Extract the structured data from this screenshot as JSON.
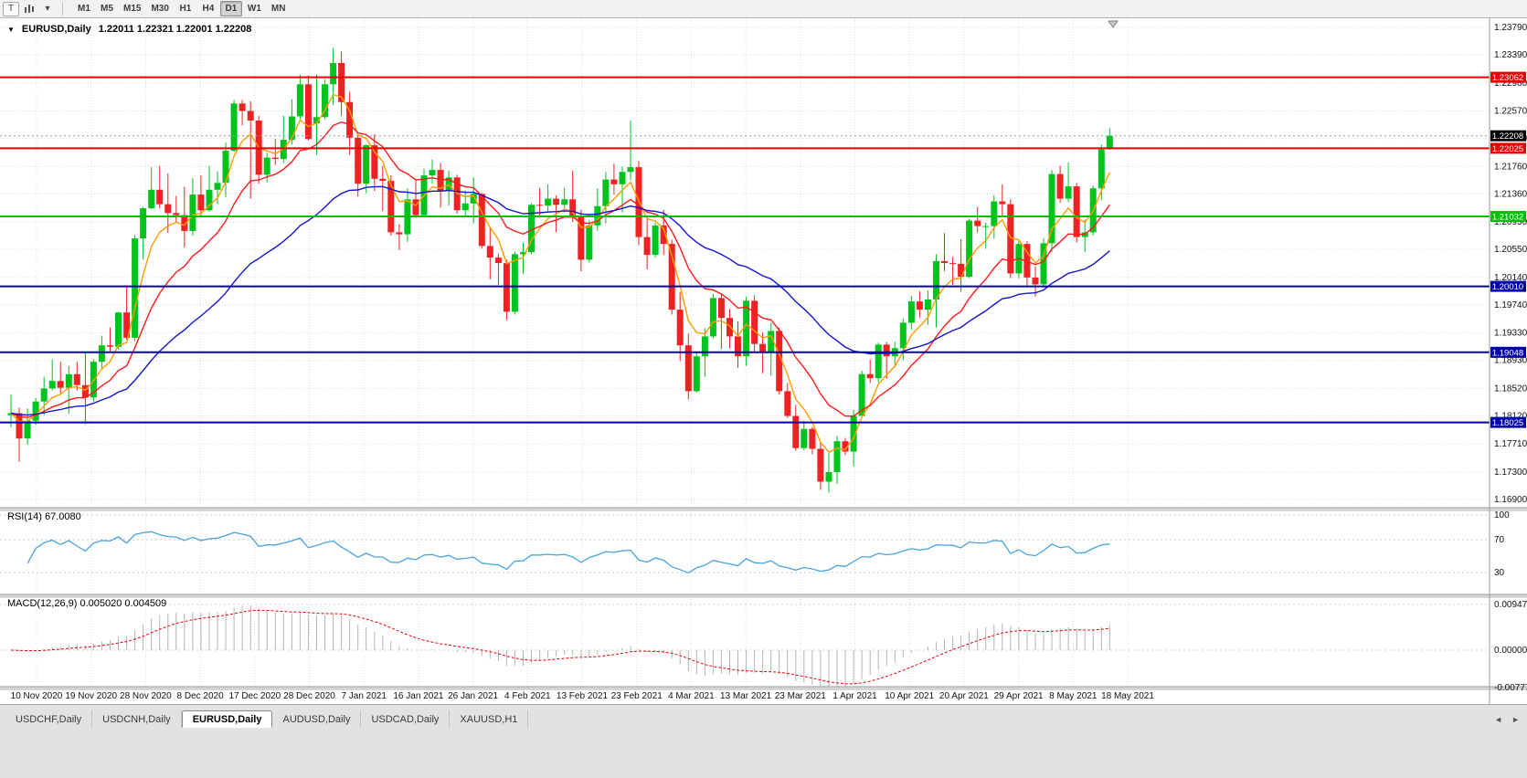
{
  "toolbar": {
    "t_button": "T",
    "caret_icon": "▾",
    "timeframes": [
      {
        "label": "M1",
        "active": false
      },
      {
        "label": "M5",
        "active": false
      },
      {
        "label": "M15",
        "active": false
      },
      {
        "label": "M30",
        "active": false
      },
      {
        "label": "H1",
        "active": false
      },
      {
        "label": "H4",
        "active": false
      },
      {
        "label": "D1",
        "active": true
      },
      {
        "label": "W1",
        "active": false
      },
      {
        "label": "MN",
        "active": false
      }
    ]
  },
  "chart": {
    "dropdown_icon": "▼",
    "title_symbol": "EURUSD,Daily",
    "title_ohlc": "1.22011 1.22321 1.22001 1.22208"
  },
  "indicators": {
    "rsi_label": "RSI(14) 67.0080",
    "macd_label": "MACD(12,26,9) 0.005020 0.004509"
  },
  "tabbar": {
    "left_arrow": "◄",
    "right_arrow": "►",
    "tabs": [
      {
        "label": "USDCHF,Daily",
        "active": false
      },
      {
        "label": "USDCNH,Daily",
        "active": false
      },
      {
        "label": "EURUSD,Daily",
        "active": true
      },
      {
        "label": "AUDUSD,Daily",
        "active": false
      },
      {
        "label": "USDCAD,Daily",
        "active": false
      },
      {
        "label": "XAUUSD,H1",
        "active": false
      }
    ]
  },
  "chart_data": {
    "type": "candlestick",
    "symbol": "EURUSD",
    "timeframe": "Daily",
    "current_bar": {
      "open": 1.22011,
      "high": 1.22321,
      "low": 1.22001,
      "close": 1.22208
    },
    "current_price": 1.22208,
    "price_scale": {
      "max": 1.2379,
      "min": 1.169
    },
    "price_axis_labels": [
      1.2379,
      1.2339,
      1.2298,
      1.2257,
      1.2217,
      1.2176,
      1.2136,
      1.2095,
      1.2055,
      1.2014,
      1.1974,
      1.1933,
      1.1893,
      1.1852,
      1.1812,
      1.1771,
      1.173,
      1.169
    ],
    "time_axis_labels": [
      "10 Nov 2020",
      "19 Nov 2020",
      "28 Nov 2020",
      "8 Dec 2020",
      "17 Dec 2020",
      "28 Dec 2020",
      "7 Jan 2021",
      "16 Jan 2021",
      "26 Jan 2021",
      "4 Feb 2021",
      "13 Feb 2021",
      "23 Feb 2021",
      "4 Mar 2021",
      "13 Mar 2021",
      "23 Mar 2021",
      "1 Apr 2021",
      "10 Apr 2021",
      "20 Apr 2021",
      "29 Apr 2021",
      "8 May 2021",
      "18 May 2021"
    ],
    "horizontal_lines": [
      {
        "price": 1.23062,
        "label": "1.23062",
        "color": "#e60000",
        "width": 2
      },
      {
        "price": 1.22025,
        "label": "1.22025",
        "color": "#e60000",
        "width": 2
      },
      {
        "price": 1.21032,
        "label": "1.21032",
        "color": "#00c000",
        "width": 2
      },
      {
        "price": 1.2001,
        "label": "1.20010",
        "color": "#0000a8",
        "width": 2
      },
      {
        "price": 1.19048,
        "label": "1.19048",
        "color": "#0000a8",
        "width": 2
      },
      {
        "price": 1.18025,
        "label": "1.18025",
        "color": "#0000a8",
        "width": 2
      }
    ],
    "moving_averages": [
      {
        "period": 5,
        "method": "ema",
        "color": "#ff9d00"
      },
      {
        "period": 13,
        "method": "ema",
        "color": "#ff1a1a"
      },
      {
        "period": 34,
        "method": "ema",
        "color": "#1414cc"
      }
    ],
    "rsi": {
      "period": 14,
      "current": 67.008,
      "levels": [
        {
          "v": 100,
          "t": "100"
        },
        {
          "v": 70,
          "t": "70"
        },
        {
          "v": 30,
          "t": "30"
        }
      ]
    },
    "macd": {
      "fast": 12,
      "slow": 26,
      "signal": 9,
      "macd_current": 0.00502,
      "signal_current": 0.004509,
      "scale_labels": [
        {
          "v": 0.009478,
          "t": "0.009478"
        },
        {
          "v": 0,
          "t": "0.00000"
        },
        {
          "v": -0.007776,
          "t": "-0.007776"
        }
      ]
    },
    "colors": {
      "bull": "#00c31e",
      "bear": "#ee2222",
      "grid": "#dcdcdc",
      "axis_text": "#111111",
      "macd_hist": "#b4b4b4",
      "macd_signal": "#e60000",
      "rsi_line": "#46a3e0",
      "current_tag": "#000000",
      "bid_line": "#9a9a9a"
    },
    "candles": [
      [
        "2020.11.10",
        1.1813,
        1.1843,
        1.1795,
        1.1816
      ],
      [
        "2020.11.11",
        1.1816,
        1.1824,
        1.1745,
        1.1779
      ],
      [
        "2020.11.12",
        1.1779,
        1.1823,
        1.177,
        1.1805
      ],
      [
        "2020.11.13",
        1.1805,
        1.1838,
        1.1799,
        1.1833
      ],
      [
        "2020.11.16",
        1.1833,
        1.1869,
        1.1813,
        1.1852
      ],
      [
        "2020.11.17",
        1.1852,
        1.1894,
        1.1849,
        1.1863
      ],
      [
        "2020.11.18",
        1.1863,
        1.1891,
        1.1845,
        1.1853
      ],
      [
        "2020.11.19",
        1.1853,
        1.1885,
        1.1815,
        1.1873
      ],
      [
        "2020.11.20",
        1.1873,
        1.1891,
        1.1849,
        1.1857
      ],
      [
        "2020.11.23",
        1.1857,
        1.1906,
        1.18,
        1.1839
      ],
      [
        "2020.11.24",
        1.1839,
        1.1895,
        1.1833,
        1.1891
      ],
      [
        "2020.11.25",
        1.1891,
        1.1929,
        1.1881,
        1.1915
      ],
      [
        "2020.11.26",
        1.1915,
        1.1941,
        1.1905,
        1.1913
      ],
      [
        "2020.11.27",
        1.1913,
        1.1964,
        1.1909,
        1.1963
      ],
      [
        "2020.11.30",
        1.1963,
        1.2003,
        1.1923,
        1.1926
      ],
      [
        "2020.12.01",
        1.1926,
        1.2076,
        1.1921,
        1.2071
      ],
      [
        "2020.12.02",
        1.2071,
        1.2117,
        1.204,
        1.2115
      ],
      [
        "2020.12.03",
        1.2115,
        1.2175,
        1.2114,
        1.2142
      ],
      [
        "2020.12.04",
        1.2142,
        1.2177,
        1.2115,
        1.2121
      ],
      [
        "2020.12.07",
        1.2121,
        1.2166,
        1.2079,
        1.2108
      ],
      [
        "2020.12.08",
        1.2108,
        1.2133,
        1.2095,
        1.2105
      ],
      [
        "2020.12.09",
        1.2105,
        1.2146,
        1.2058,
        1.2082
      ],
      [
        "2020.12.10",
        1.2082,
        1.2159,
        1.2075,
        1.2135
      ],
      [
        "2020.12.11",
        1.2135,
        1.2163,
        1.2103,
        1.2112
      ],
      [
        "2020.12.14",
        1.2112,
        1.2177,
        1.211,
        1.2142
      ],
      [
        "2020.12.15",
        1.2142,
        1.2169,
        1.2121,
        1.2152
      ],
      [
        "2020.12.16",
        1.2152,
        1.2211,
        1.2131,
        1.2199
      ],
      [
        "2020.12.17",
        1.2199,
        1.2273,
        1.2197,
        1.2268
      ],
      [
        "2020.12.18",
        1.2268,
        1.2273,
        1.2236,
        1.2257
      ],
      [
        "2020.12.21",
        1.2257,
        1.2271,
        1.2129,
        1.2243
      ],
      [
        "2020.12.22",
        1.2243,
        1.225,
        1.2151,
        1.2164
      ],
      [
        "2020.12.23",
        1.2164,
        1.2196,
        1.2153,
        1.2189
      ],
      [
        "2020.12.24",
        1.2189,
        1.2216,
        1.2178,
        1.2187
      ],
      [
        "2020.12.28",
        1.2187,
        1.225,
        1.2181,
        1.2215
      ],
      [
        "2020.12.29",
        1.2215,
        1.2274,
        1.2208,
        1.2249
      ],
      [
        "2020.12.30",
        1.2249,
        1.231,
        1.2245,
        1.2296
      ],
      [
        "2020.12.31",
        1.2296,
        1.2309,
        1.2214,
        1.2216
      ],
      [
        "2021.01.04",
        1.2239,
        1.231,
        1.2193,
        1.2248
      ],
      [
        "2021.01.05",
        1.2248,
        1.2303,
        1.2245,
        1.2296
      ],
      [
        "2021.01.06",
        1.2296,
        1.2349,
        1.2266,
        1.2327
      ],
      [
        "2021.01.07",
        1.2327,
        1.2344,
        1.225,
        1.227
      ],
      [
        "2021.01.08",
        1.227,
        1.2285,
        1.2193,
        1.2218
      ],
      [
        "2021.01.11",
        1.2218,
        1.2223,
        1.2132,
        1.2151
      ],
      [
        "2021.01.12",
        1.2151,
        1.2208,
        1.2137,
        1.2207
      ],
      [
        "2021.01.13",
        1.2207,
        1.2223,
        1.214,
        1.2158
      ],
      [
        "2021.01.14",
        1.2158,
        1.2177,
        1.2111,
        1.2155
      ],
      [
        "2021.01.15",
        1.2155,
        1.2163,
        1.2075,
        1.208
      ],
      [
        "2021.01.18",
        1.208,
        1.2092,
        1.2054,
        1.2077
      ],
      [
        "2021.01.19",
        1.2077,
        1.2144,
        1.2066,
        1.2128
      ],
      [
        "2021.01.20",
        1.2128,
        1.2158,
        1.2101,
        1.2105
      ],
      [
        "2021.01.21",
        1.2105,
        1.2173,
        1.2103,
        1.2163
      ],
      [
        "2021.01.22",
        1.2163,
        1.2186,
        1.2151,
        1.2171
      ],
      [
        "2021.01.25",
        1.2171,
        1.2181,
        1.2116,
        1.214
      ],
      [
        "2021.01.26",
        1.214,
        1.217,
        1.2119,
        1.216
      ],
      [
        "2021.01.27",
        1.216,
        1.2164,
        1.2107,
        1.2112
      ],
      [
        "2021.01.28",
        1.2112,
        1.2141,
        1.2104,
        1.2122
      ],
      [
        "2021.01.29",
        1.2122,
        1.216,
        1.2093,
        1.2136
      ],
      [
        "2021.02.01",
        1.2136,
        1.2137,
        1.2056,
        1.206
      ],
      [
        "2021.02.02",
        1.206,
        1.2086,
        1.2011,
        1.2043
      ],
      [
        "2021.02.03",
        1.2043,
        1.2049,
        1.2003,
        1.2035
      ],
      [
        "2021.02.04",
        1.2035,
        1.204,
        1.1952,
        1.1964
      ],
      [
        "2021.02.05",
        1.1964,
        1.2052,
        1.196,
        1.2048
      ],
      [
        "2021.02.08",
        1.2048,
        1.2065,
        1.2019,
        1.2051
      ],
      [
        "2021.02.09",
        1.2051,
        1.2122,
        1.2048,
        1.212
      ],
      [
        "2021.02.10",
        1.212,
        1.2145,
        1.2103,
        1.2119
      ],
      [
        "2021.02.11",
        1.2119,
        1.215,
        1.211,
        1.2129
      ],
      [
        "2021.02.12",
        1.2129,
        1.2134,
        1.208,
        1.212
      ],
      [
        "2021.02.15",
        1.212,
        1.2145,
        1.2109,
        1.2128
      ],
      [
        "2021.02.16",
        1.2128,
        1.217,
        1.2095,
        1.2104
      ],
      [
        "2021.02.17",
        1.2104,
        1.2113,
        1.2023,
        1.204
      ],
      [
        "2021.02.18",
        1.204,
        1.2097,
        1.2036,
        1.209
      ],
      [
        "2021.02.19",
        1.209,
        1.2144,
        1.2082,
        1.2118
      ],
      [
        "2021.02.22",
        1.2118,
        1.2168,
        1.2093,
        1.2157
      ],
      [
        "2021.02.23",
        1.2157,
        1.218,
        1.2135,
        1.215
      ],
      [
        "2021.02.24",
        1.215,
        1.2176,
        1.2109,
        1.2168
      ],
      [
        "2021.02.25",
        1.2168,
        1.2243,
        1.2156,
        1.2175
      ],
      [
        "2021.02.26",
        1.2175,
        1.2184,
        1.2061,
        1.2073
      ],
      [
        "2021.03.01",
        1.2073,
        1.2102,
        1.2026,
        1.2047
      ],
      [
        "2021.03.02",
        1.2047,
        1.2094,
        1.2043,
        1.209
      ],
      [
        "2021.03.03",
        1.209,
        1.2113,
        1.2047,
        1.2063
      ],
      [
        "2021.03.04",
        1.2063,
        1.2069,
        1.196,
        1.1967
      ],
      [
        "2021.03.05",
        1.1967,
        1.1993,
        1.1892,
        1.1915
      ],
      [
        "2021.03.08",
        1.1915,
        1.1932,
        1.1836,
        1.1848
      ],
      [
        "2021.03.09",
        1.1848,
        1.1906,
        1.1846,
        1.1899
      ],
      [
        "2021.03.10",
        1.1899,
        1.194,
        1.1869,
        1.1928
      ],
      [
        "2021.03.11",
        1.1928,
        1.199,
        1.1925,
        1.1984
      ],
      [
        "2021.03.12",
        1.1984,
        1.199,
        1.191,
        1.1955
      ],
      [
        "2021.03.15",
        1.1955,
        1.1968,
        1.1911,
        1.1928
      ],
      [
        "2021.03.16",
        1.1928,
        1.195,
        1.1882,
        1.1899
      ],
      [
        "2021.03.17",
        1.1899,
        1.1986,
        1.1885,
        1.198
      ],
      [
        "2021.03.18",
        1.198,
        1.1988,
        1.1906,
        1.1917
      ],
      [
        "2021.03.19",
        1.1917,
        1.1934,
        1.1874,
        1.1905
      ],
      [
        "2021.03.22",
        1.1905,
        1.1948,
        1.1871,
        1.1936
      ],
      [
        "2021.03.23",
        1.1936,
        1.1941,
        1.1843,
        1.1848
      ],
      [
        "2021.03.24",
        1.1848,
        1.186,
        1.1809,
        1.1812
      ],
      [
        "2021.03.25",
        1.1812,
        1.1828,
        1.1761,
        1.1765
      ],
      [
        "2021.03.26",
        1.1765,
        1.1805,
        1.1762,
        1.1793
      ],
      [
        "2021.03.29",
        1.1793,
        1.1796,
        1.1756,
        1.1764
      ],
      [
        "2021.03.30",
        1.1764,
        1.1774,
        1.1704,
        1.1716
      ],
      [
        "2021.03.31",
        1.1716,
        1.176,
        1.17,
        1.173
      ],
      [
        "2021.04.01",
        1.173,
        1.1783,
        1.1713,
        1.1775
      ],
      [
        "2021.04.02",
        1.1775,
        1.178,
        1.1755,
        1.176
      ],
      [
        "2021.04.05",
        1.176,
        1.1821,
        1.1738,
        1.1812
      ],
      [
        "2021.04.06",
        1.1812,
        1.1878,
        1.181,
        1.1873
      ],
      [
        "2021.04.07",
        1.1873,
        1.1894,
        1.186,
        1.1867
      ],
      [
        "2021.04.08",
        1.1867,
        1.1919,
        1.1861,
        1.1916
      ],
      [
        "2021.04.09",
        1.1916,
        1.192,
        1.1866,
        1.1899
      ],
      [
        "2021.04.12",
        1.1899,
        1.192,
        1.1883,
        1.1911
      ],
      [
        "2021.04.13",
        1.1911,
        1.1954,
        1.1893,
        1.1948
      ],
      [
        "2021.04.14",
        1.1948,
        1.1987,
        1.1938,
        1.1979
      ],
      [
        "2021.04.15",
        1.1979,
        1.1994,
        1.1955,
        1.1967
      ],
      [
        "2021.04.16",
        1.1967,
        1.1995,
        1.1945,
        1.1982
      ],
      [
        "2021.04.19",
        1.1982,
        1.2048,
        1.1941,
        1.2038
      ],
      [
        "2021.04.20",
        1.2038,
        1.2079,
        1.2023,
        1.2035
      ],
      [
        "2021.04.21",
        1.2035,
        1.2044,
        1.2003,
        1.2034
      ],
      [
        "2021.04.22",
        1.2034,
        1.207,
        1.1993,
        1.2015
      ],
      [
        "2021.04.23",
        1.2015,
        1.21,
        1.2013,
        1.2097
      ],
      [
        "2021.04.26",
        1.2097,
        1.2117,
        1.208,
        1.2089
      ],
      [
        "2021.04.27",
        1.2089,
        1.2094,
        1.2056,
        1.2089
      ],
      [
        "2021.04.28",
        1.2089,
        1.2134,
        1.2071,
        1.2125
      ],
      [
        "2021.04.29",
        1.2125,
        1.215,
        1.2103,
        1.2121
      ],
      [
        "2021.04.30",
        1.2121,
        1.2128,
        1.2013,
        1.202
      ],
      [
        "2021.05.03",
        1.202,
        1.2067,
        1.2013,
        1.2063
      ],
      [
        "2021.05.04",
        1.2063,
        1.2067,
        1.1999,
        1.2014
      ],
      [
        "2021.05.05",
        1.2014,
        1.203,
        1.1986,
        1.2004
      ],
      [
        "2021.05.06",
        1.2004,
        1.2071,
        1.2002,
        1.2064
      ],
      [
        "2021.05.07",
        1.2064,
        1.2171,
        1.2051,
        1.2165
      ],
      [
        "2021.05.10",
        1.2165,
        1.2177,
        1.2123,
        1.2129
      ],
      [
        "2021.05.11",
        1.2129,
        1.2182,
        1.2124,
        1.2147
      ],
      [
        "2021.05.12",
        1.2147,
        1.2152,
        1.2065,
        1.2073
      ],
      [
        "2021.05.13",
        1.2073,
        1.2098,
        1.2051,
        1.208
      ],
      [
        "2021.05.14",
        1.208,
        1.2148,
        1.2075,
        1.2144
      ],
      [
        "2021.05.17",
        1.2144,
        1.2208,
        1.2127,
        1.2201
      ],
      [
        "2021.05.18",
        1.22011,
        1.22321,
        1.22001,
        1.22208
      ]
    ]
  }
}
